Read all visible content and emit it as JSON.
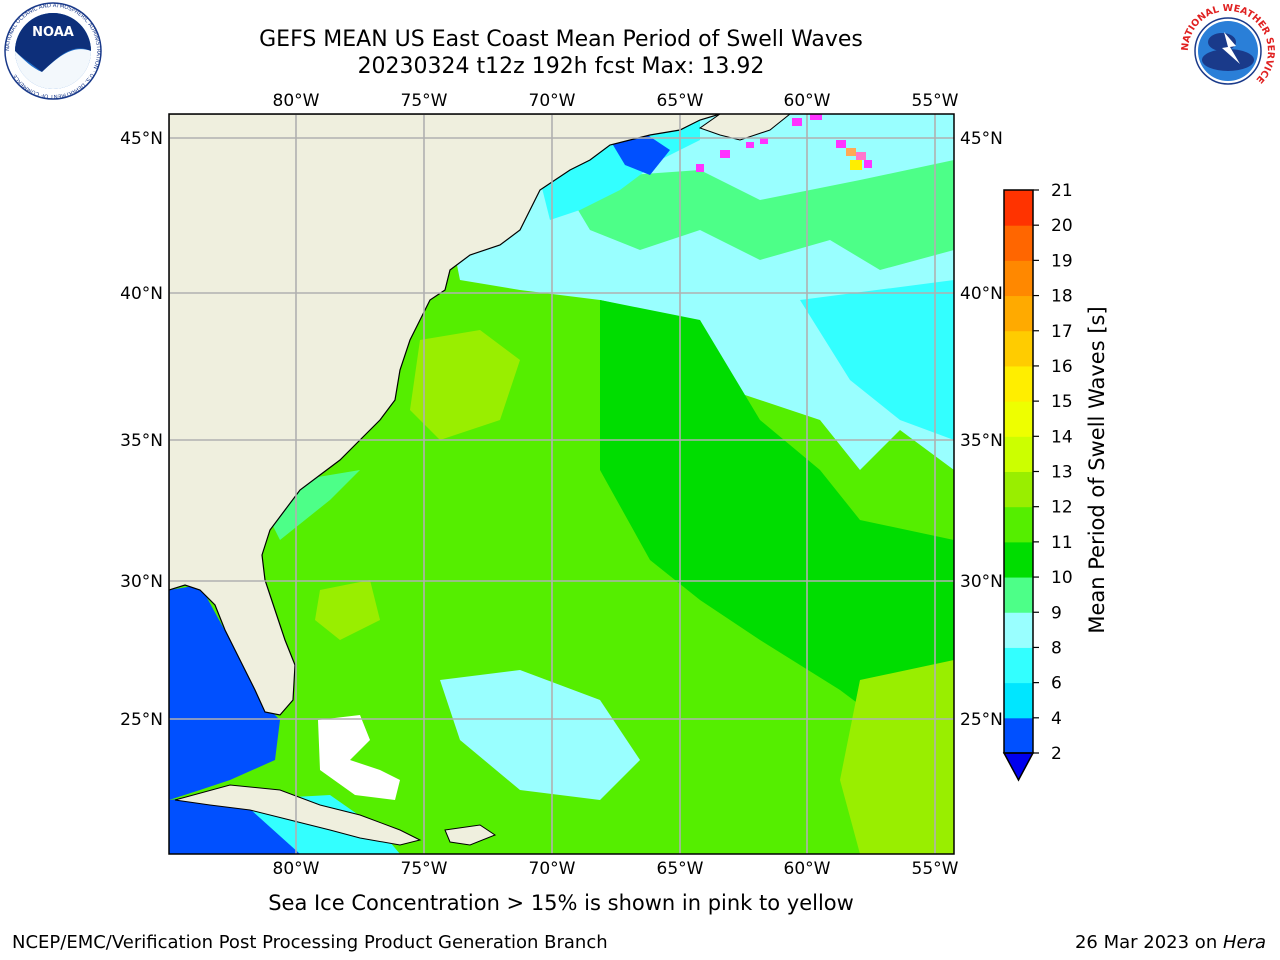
{
  "title": {
    "line1": "GEFS MEAN US East Coast Mean Period of Swell Waves",
    "line2": "20230324 t12z 192h fcst   Max: 13.92"
  },
  "footnote": "Sea Ice Concentration > 15% is shown in pink to yellow",
  "credit_left": "NCEP/EMC/Verification Post Processing Product Generation Branch",
  "credit_right_date": "26 Mar 2023 on ",
  "credit_right_host": "Hera",
  "colorbar": {
    "label": "Mean Period of Swell Waves [s]",
    "ticks": [
      "2",
      "4",
      "6",
      "8",
      "9",
      "10",
      "11",
      "12",
      "13",
      "14",
      "15",
      "16",
      "17",
      "18",
      "19",
      "20",
      "21"
    ],
    "colors": [
      "#0050ff",
      "#00e6ff",
      "#33ffff",
      "#99ffff",
      "#4dff88",
      "#00dd00",
      "#55ee00",
      "#99ee00",
      "#ccff00",
      "#eeff00",
      "#ffee00",
      "#ffcc00",
      "#ffaa00",
      "#ff8800",
      "#ff6600",
      "#ff3300"
    ],
    "underflow_color": "#0000ee"
  },
  "map": {
    "lon_labels": [
      "80°W",
      "75°W",
      "70°W",
      "65°W",
      "60°W",
      "55°W"
    ],
    "lat_labels": [
      "45°N",
      "40°N",
      "35°N",
      "30°N",
      "25°N"
    ],
    "land_color": "#efefde",
    "grid_color": "#b0b0b0"
  },
  "logos": {
    "noaa_text": "NOAA",
    "noaa_ring": "NATIONAL OCEANIC AND ATMOSPHERIC ADMINISTRATION · U.S. DEPARTMENT OF COMMERCE",
    "nws_ring": "NATIONAL WEATHER SERVICE"
  }
}
